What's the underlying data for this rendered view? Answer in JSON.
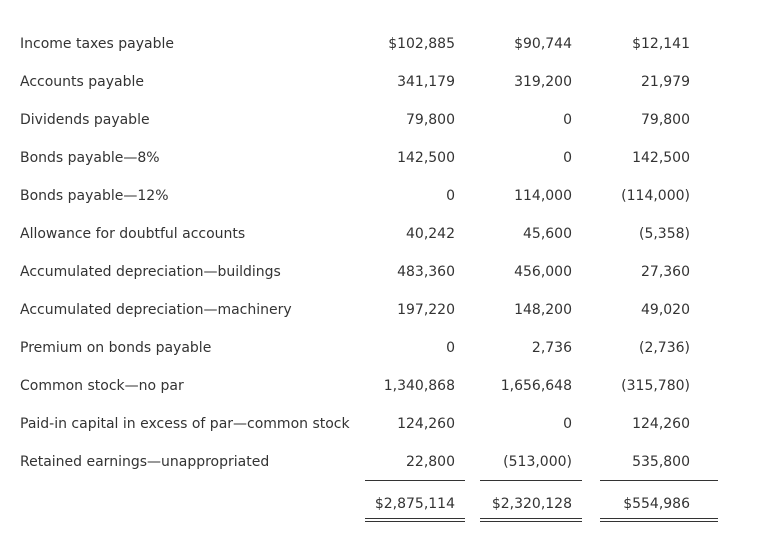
{
  "table": {
    "rows": [
      [
        "Income taxes payable",
        "$102,885",
        "$90,744",
        "$12,141"
      ],
      [
        "Accounts payable",
        "341,179",
        "319,200",
        "21,979"
      ],
      [
        "Dividends payable",
        "79,800",
        "0",
        "79,800"
      ],
      [
        "Bonds payable—8%",
        "142,500",
        "0",
        "142,500"
      ],
      [
        "Bonds payable—12%",
        "0",
        "114,000",
        "(114,000)"
      ],
      [
        "Allowance for doubtful accounts",
        "40,242",
        "45,600",
        "(5,358)"
      ],
      [
        "Accumulated depreciation—buildings",
        "483,360",
        "456,000",
        "27,360"
      ],
      [
        "Accumulated depreciation—machinery",
        "197,220",
        "148,200",
        "49,020"
      ],
      [
        "Premium on bonds payable",
        "0",
        "2,736",
        "(2,736)"
      ],
      [
        "Common stock—no par",
        "1,340,868",
        "1,656,648",
        "(315,780)"
      ],
      [
        "Paid-in capital in excess of par—common stock",
        "124,260",
        "0",
        "124,260"
      ],
      [
        "Retained earnings—unappropriated",
        "22,800",
        "(513,000)",
        "535,800"
      ]
    ],
    "totals": [
      "$2,875,114",
      "$2,320,128",
      "$554,986"
    ]
  }
}
